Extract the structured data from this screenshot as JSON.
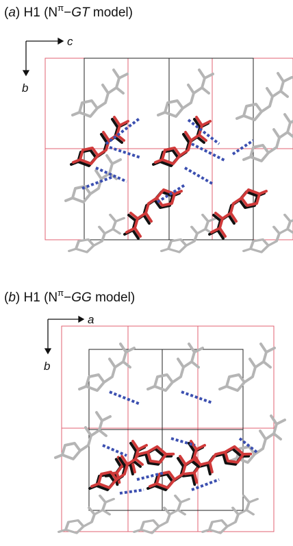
{
  "panels": [
    {
      "title": [
        "(",
        "a",
        ") H1 (N",
        "π",
        "−",
        "GT",
        " model)"
      ],
      "axes": {
        "horizontal": "c",
        "vertical": "b"
      }
    },
    {
      "title": [
        "(",
        "b",
        ") H1 (N",
        "π",
        "−",
        "GG",
        " model)"
      ],
      "axes": {
        "horizontal": "a",
        "vertical": "b"
      }
    }
  ]
}
